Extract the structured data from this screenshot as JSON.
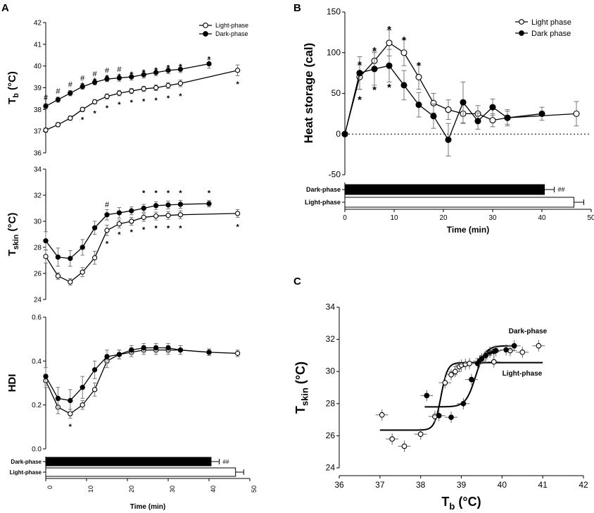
{
  "chart_data": [
    {
      "panel": "A",
      "title": "",
      "type": "line",
      "subplots": [
        {
          "id": "Tb",
          "ylabel": "Tb (°C)",
          "ylabel_main": "T",
          "ylabel_sub": "b",
          "ylabel_unit": " (°C)",
          "ylim": [
            36,
            42
          ],
          "yticks": [
            "36",
            "37",
            "38",
            "39",
            "40",
            "41",
            "42"
          ],
          "series": [
            {
              "name": "Light-phase",
              "marker": "open",
              "x": [
                0,
                3,
                6,
                9,
                12,
                15,
                18,
                21,
                24,
                27,
                30,
                33,
                47
              ],
              "y": [
                37.05,
                37.3,
                37.6,
                38.0,
                38.35,
                38.6,
                38.75,
                38.85,
                38.95,
                39.0,
                39.1,
                39.2,
                39.8
              ],
              "err": [
                0.1,
                0.1,
                0.1,
                0.1,
                0.1,
                0.12,
                0.12,
                0.12,
                0.12,
                0.13,
                0.13,
                0.15,
                0.25
              ]
            },
            {
              "name": "Dark-phase",
              "marker": "filled",
              "x": [
                0,
                3,
                6,
                9,
                12,
                15,
                18,
                21,
                24,
                27,
                30,
                33,
                40
              ],
              "y": [
                38.15,
                38.45,
                38.75,
                39.05,
                39.25,
                39.4,
                39.45,
                39.5,
                39.6,
                39.7,
                39.8,
                39.85,
                40.1
              ],
              "err": [
                0.12,
                0.12,
                0.12,
                0.12,
                0.12,
                0.12,
                0.15,
                0.15,
                0.15,
                0.15,
                0.15,
                0.15,
                0.2
              ]
            }
          ],
          "annotations": [
            {
              "x": 0,
              "y": 38.55,
              "text": "#"
            },
            {
              "x": 3,
              "y": 38.85,
              "text": "#"
            },
            {
              "x": 6,
              "y": 39.15,
              "text": "#"
            },
            {
              "x": 9,
              "y": 39.45,
              "text": "#"
            },
            {
              "x": 9,
              "y": 39.2,
              "text": "*"
            },
            {
              "x": 12,
              "y": 39.65,
              "text": "#"
            },
            {
              "x": 12,
              "y": 39.4,
              "text": "*"
            },
            {
              "x": 15,
              "y": 39.8,
              "text": "#"
            },
            {
              "x": 15,
              "y": 39.55,
              "text": "*"
            },
            {
              "x": 18,
              "y": 39.85,
              "text": "#"
            },
            {
              "x": 18,
              "y": 39.6,
              "text": "*"
            },
            {
              "x": 21,
              "y": 39.7,
              "text": "*"
            },
            {
              "x": 24,
              "y": 39.8,
              "text": "*"
            },
            {
              "x": 27,
              "y": 39.9,
              "text": "*"
            },
            {
              "x": 30,
              "y": 40.0,
              "text": "*"
            },
            {
              "x": 33,
              "y": 40.05,
              "text": "*"
            },
            {
              "x": 40,
              "y": 40.4,
              "text": "*"
            },
            {
              "x": 9,
              "y": 37.6,
              "text": "*"
            },
            {
              "x": 12,
              "y": 37.9,
              "text": "*"
            },
            {
              "x": 15,
              "y": 38.15,
              "text": "*"
            },
            {
              "x": 18,
              "y": 38.3,
              "text": "*"
            },
            {
              "x": 21,
              "y": 38.4,
              "text": "*"
            },
            {
              "x": 24,
              "y": 38.45,
              "text": "*"
            },
            {
              "x": 27,
              "y": 38.5,
              "text": "*"
            },
            {
              "x": 30,
              "y": 38.6,
              "text": "*"
            },
            {
              "x": 33,
              "y": 38.7,
              "text": "*"
            },
            {
              "x": 47,
              "y": 39.25,
              "text": "*"
            }
          ]
        },
        {
          "id": "Tskin",
          "ylabel": "Tskin (°C)",
          "ylabel_main": "T",
          "ylabel_sub": "skin",
          "ylabel_unit": " (°C)",
          "ylim": [
            24,
            34
          ],
          "yticks": [
            "24",
            "26",
            "28",
            "30",
            "32",
            "34"
          ],
          "series": [
            {
              "name": "Light-phase",
              "marker": "open",
              "x": [
                0,
                3,
                6,
                9,
                12,
                15,
                18,
                21,
                24,
                27,
                30,
                33,
                47
              ],
              "y": [
                27.3,
                25.8,
                25.35,
                26.1,
                27.2,
                29.3,
                29.8,
                30.0,
                30.3,
                30.4,
                30.45,
                30.5,
                30.6
              ],
              "err": [
                0.5,
                0.25,
                0.25,
                0.35,
                0.5,
                0.4,
                0.3,
                0.3,
                0.3,
                0.3,
                0.3,
                0.3,
                0.3
              ]
            },
            {
              "name": "Dark-phase",
              "marker": "filled",
              "x": [
                0,
                3,
                6,
                9,
                12,
                15,
                18,
                21,
                24,
                27,
                30,
                33,
                40
              ],
              "y": [
                28.5,
                27.25,
                27.15,
                28.0,
                29.5,
                30.5,
                30.65,
                30.8,
                31.0,
                31.2,
                31.25,
                31.3,
                31.35
              ],
              "err": [
                0.7,
                0.7,
                0.6,
                0.6,
                0.5,
                0.4,
                0.4,
                0.3,
                0.3,
                0.3,
                0.3,
                0.3,
                0.25
              ]
            }
          ],
          "annotations": [
            {
              "x": 15,
              "y": 31.3,
              "text": "#"
            },
            {
              "x": 24,
              "y": 32.3,
              "text": "*"
            },
            {
              "x": 27,
              "y": 32.3,
              "text": "*"
            },
            {
              "x": 30,
              "y": 32.3,
              "text": "*"
            },
            {
              "x": 33,
              "y": 32.3,
              "text": "*"
            },
            {
              "x": 40,
              "y": 32.3,
              "text": "*"
            },
            {
              "x": 15,
              "y": 28.4,
              "text": "*"
            },
            {
              "x": 18,
              "y": 29.1,
              "text": "*"
            },
            {
              "x": 21,
              "y": 29.3,
              "text": "*"
            },
            {
              "x": 24,
              "y": 29.5,
              "text": "*"
            },
            {
              "x": 27,
              "y": 29.6,
              "text": "*"
            },
            {
              "x": 30,
              "y": 29.6,
              "text": "*"
            },
            {
              "x": 33,
              "y": 29.6,
              "text": "*"
            },
            {
              "x": 47,
              "y": 29.7,
              "text": "*"
            }
          ]
        },
        {
          "id": "HDI",
          "ylabel": "HDI",
          "ylabel_main": "HDI",
          "ylabel_sub": "",
          "ylabel_unit": "",
          "ylim": [
            0.0,
            0.6
          ],
          "yticks": [
            "0.0",
            "0.2",
            "0.4",
            "0.6"
          ],
          "series": [
            {
              "name": "Light-phase",
              "marker": "open",
              "x": [
                0,
                3,
                6,
                9,
                12,
                15,
                18,
                21,
                24,
                27,
                30,
                33,
                40,
                47
              ],
              "y": [
                0.31,
                0.19,
                0.16,
                0.2,
                0.27,
                0.4,
                0.43,
                0.44,
                0.45,
                0.45,
                0.45,
                0.45,
                0.44,
                0.435
              ],
              "err": [
                0.03,
                0.03,
                0.02,
                0.02,
                0.03,
                0.03,
                0.02,
                0.02,
                0.02,
                0.02,
                0.02,
                0.02,
                0.015,
                0.015
              ]
            },
            {
              "name": "Dark-phase",
              "marker": "filled",
              "x": [
                0,
                3,
                6,
                9,
                12,
                15,
                18,
                21,
                24,
                27,
                30,
                33,
                40
              ],
              "y": [
                0.33,
                0.23,
                0.22,
                0.28,
                0.36,
                0.42,
                0.43,
                0.45,
                0.46,
                0.46,
                0.46,
                0.45,
                0.44
              ],
              "err": [
                0.04,
                0.05,
                0.05,
                0.05,
                0.04,
                0.03,
                0.02,
                0.02,
                0.02,
                0.02,
                0.02,
                0.02,
                0.015
              ]
            }
          ],
          "annotations": [
            {
              "x": 6,
              "y": 0.11,
              "text": "*"
            }
          ]
        }
      ],
      "bars": {
        "categories": [
          "Dark-phase",
          "Light-phase"
        ],
        "values": [
          40.5,
          46.5
        ],
        "err": [
          2.0,
          2.0
        ],
        "colors": [
          "#000000",
          "#ffffff"
        ],
        "note": "##"
      },
      "xlabel": "Time (min)",
      "xlim": [
        0,
        50
      ],
      "xticks": [
        "0",
        "10",
        "20",
        "30",
        "40",
        "50"
      ],
      "legend": [
        "Light-phase",
        "Dark-phase"
      ],
      "legend_position": "top-right"
    },
    {
      "panel": "B",
      "type": "line",
      "ylabel": "Heat storage (cal)",
      "ylim": [
        -50,
        150
      ],
      "yticks": [
        "-50",
        "0",
        "50",
        "100",
        "150"
      ],
      "xlabel": "Time (min)",
      "xlim": [
        0,
        50
      ],
      "xticks": [
        "0",
        "10",
        "20",
        "30",
        "40",
        "50"
      ],
      "legend": [
        "Light phase",
        "Dark phase"
      ],
      "legend_position": "top-right",
      "series": [
        {
          "name": "Light phase",
          "marker": "open",
          "x": [
            0,
            3,
            6,
            9,
            12,
            15,
            18,
            21,
            24,
            27,
            30,
            33,
            47
          ],
          "y": [
            0,
            70,
            90,
            112,
            100,
            70,
            38,
            30,
            25,
            25,
            17,
            20,
            25
          ],
          "err": [
            0,
            15,
            12,
            16,
            16,
            15,
            12,
            12,
            12,
            10,
            8,
            8,
            15
          ]
        },
        {
          "name": "Dark phase",
          "marker": "filled",
          "x": [
            0,
            3,
            6,
            9,
            12,
            15,
            18,
            21,
            24,
            27,
            30,
            33,
            40
          ],
          "y": [
            0,
            75,
            80,
            84,
            60,
            36,
            22,
            -7,
            39,
            16,
            33,
            20,
            25
          ],
          "err": [
            0,
            20,
            20,
            20,
            18,
            15,
            15,
            20,
            25,
            10,
            10,
            10,
            8
          ]
        }
      ],
      "annotations": [
        {
          "x": 3,
          "y": 88,
          "text": "*"
        },
        {
          "x": 6,
          "y": 105,
          "text": "*"
        },
        {
          "x": 9,
          "y": 131,
          "text": "*"
        },
        {
          "x": 12,
          "y": 118,
          "text": "*"
        },
        {
          "x": 15,
          "y": 87,
          "text": "*"
        },
        {
          "x": 3,
          "y": 45,
          "text": "*"
        },
        {
          "x": 6,
          "y": 57,
          "text": "*"
        },
        {
          "x": 9,
          "y": 60,
          "text": "*"
        }
      ],
      "bars": {
        "categories": [
          "Dark-phase",
          "Light-phase"
        ],
        "values": [
          40.5,
          46.5
        ],
        "err": [
          2.0,
          2.0
        ],
        "colors": [
          "#000000",
          "#ffffff"
        ],
        "note": "##"
      }
    },
    {
      "panel": "C",
      "type": "scatter",
      "ylabel": "Tskin (°C)",
      "ylabel_main": "T",
      "ylabel_sub": "skin",
      "ylabel_unit": " (°C)",
      "xlabel": "Tb (°C)",
      "xlabel_main": "T",
      "xlabel_sub": "b",
      "xlabel_unit": " (°C)",
      "xlim": [
        36,
        42
      ],
      "ylim": [
        24,
        34
      ],
      "xticks": [
        "36",
        "37",
        "38",
        "39",
        "40",
        "41",
        "42"
      ],
      "yticks": [
        "24",
        "26",
        "28",
        "30",
        "32",
        "34"
      ],
      "series": [
        {
          "name": "Light-phase",
          "marker": "open",
          "x": [
            37.05,
            37.3,
            37.6,
            38.0,
            38.35,
            38.6,
            38.75,
            38.85,
            38.95,
            39.0,
            39.1,
            39.2,
            39.8,
            40.2,
            40.5,
            40.9
          ],
          "y": [
            27.3,
            25.8,
            25.35,
            26.1,
            27.2,
            29.3,
            29.8,
            30.0,
            30.3,
            30.4,
            30.45,
            30.5,
            30.6,
            31.3,
            31.2,
            31.6
          ]
        },
        {
          "name": "Dark-phase",
          "marker": "filled",
          "x": [
            38.15,
            38.45,
            38.75,
            39.05,
            39.25,
            39.4,
            39.45,
            39.5,
            39.6,
            39.7,
            39.8,
            39.85,
            40.1,
            40.3
          ],
          "y": [
            28.5,
            27.25,
            27.15,
            28.0,
            29.5,
            30.5,
            30.65,
            30.8,
            31.0,
            31.2,
            31.25,
            31.3,
            31.35,
            31.6
          ]
        }
      ],
      "fits": [
        {
          "name": "Dark-phase",
          "bottom": 27.8,
          "top": 31.6,
          "mid": 39.35,
          "slope": 0.12,
          "xrange": [
            38.1,
            40.3
          ]
        },
        {
          "name": "Light-phase",
          "bottom": 26.35,
          "top": 30.55,
          "mid": 38.5,
          "slope": 0.08,
          "xrange": [
            37.0,
            41.0
          ]
        }
      ],
      "labels": [
        "Dark-phase",
        "Light-phase"
      ]
    }
  ],
  "panel_labels": {
    "a": "A",
    "b": "B",
    "c": "C"
  }
}
